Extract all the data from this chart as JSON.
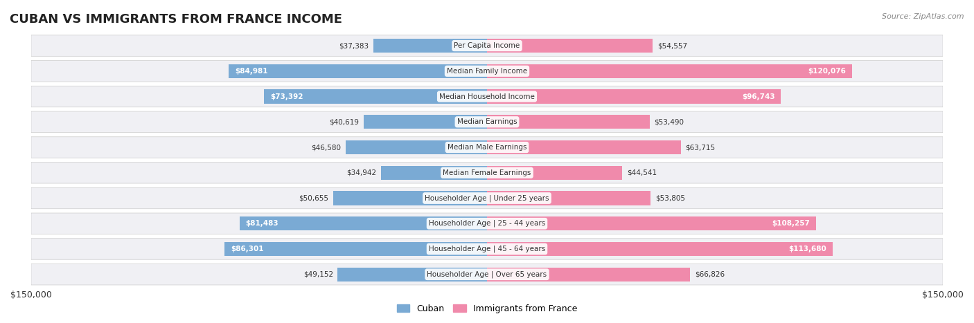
{
  "title": "CUBAN VS IMMIGRANTS FROM FRANCE INCOME",
  "source": "Source: ZipAtlas.com",
  "categories": [
    "Per Capita Income",
    "Median Family Income",
    "Median Household Income",
    "Median Earnings",
    "Median Male Earnings",
    "Median Female Earnings",
    "Householder Age | Under 25 years",
    "Householder Age | 25 - 44 years",
    "Householder Age | 45 - 64 years",
    "Householder Age | Over 65 years"
  ],
  "cuban_values": [
    37383,
    84981,
    73392,
    40619,
    46580,
    34942,
    50655,
    81483,
    86301,
    49152
  ],
  "france_values": [
    54557,
    120076,
    96743,
    53490,
    63715,
    44541,
    53805,
    108257,
    113680,
    66826
  ],
  "cuban_color": "#7aaad4",
  "france_color": "#f08aab",
  "cuban_color_dark": "#5b8fc7",
  "france_color_dark": "#e8608a",
  "max_value": 150000,
  "bg_row_color": "#f0f0f4",
  "bg_color": "#ffffff",
  "label_cuban": "Cuban",
  "label_france": "Immigrants from France",
  "title_fontsize": 14,
  "tick_label_left": "$150,000",
  "tick_label_right": "$150,000",
  "bar_height": 0.55,
  "row_padding": 0.18
}
